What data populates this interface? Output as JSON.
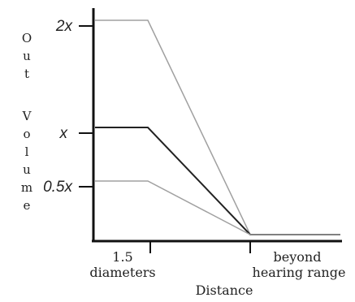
{
  "chart_data": {
    "type": "line",
    "xlabel": "Distance",
    "ylabel": "Out Volume",
    "y_ticks": [
      "2x",
      "x",
      "0.5x"
    ],
    "x_ticks": [
      {
        "line1": "1.5",
        "line2": "diameters"
      },
      {
        "line1": "beyond",
        "line2": "hearing range"
      }
    ],
    "series": [
      {
        "points": [
          [
            0,
            2
          ],
          [
            1.5,
            2
          ],
          [
            6,
            0
          ],
          [
            7.5,
            0
          ]
        ],
        "color": "#a0a0a0"
      },
      {
        "points": [
          [
            0,
            1
          ],
          [
            1.5,
            1
          ],
          [
            6,
            0
          ],
          [
            7.5,
            0
          ]
        ],
        "color": "#222222"
      },
      {
        "points": [
          [
            0,
            0.5
          ],
          [
            1.5,
            0.5
          ],
          [
            6,
            0
          ],
          [
            7.5,
            0
          ]
        ],
        "color": "#a0a0a0"
      }
    ],
    "colors": {
      "axis": "#111111",
      "dark": "#222222",
      "light": "#a0a0a0"
    }
  }
}
